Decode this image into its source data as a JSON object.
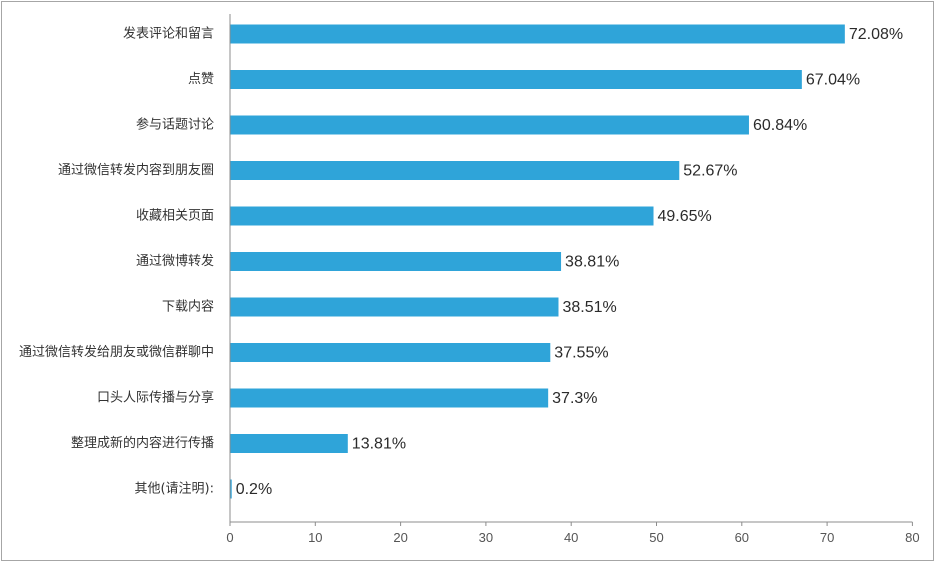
{
  "chart_data": {
    "type": "bar",
    "orientation": "horizontal",
    "categories": [
      "发表评论和留言",
      "点赞",
      "参与话题讨论",
      "通过微信转发内容到朋友圈",
      "收藏相关页面",
      "通过微博转发",
      "下载内容",
      "通过微信转发给朋友或微信群聊中",
      "口头人际传播与分享",
      "整理成新的内容进行传播",
      "其他(请注明):"
    ],
    "values": [
      72.08,
      67.04,
      60.84,
      52.67,
      49.65,
      38.81,
      38.51,
      37.55,
      37.3,
      13.81,
      0.2
    ],
    "value_labels": [
      "72.08%",
      "67.04%",
      "60.84%",
      "52.67%",
      "49.65%",
      "38.81%",
      "38.51%",
      "37.55%",
      "37.3%",
      "13.81%",
      "0.2%"
    ],
    "xlim": [
      0,
      80
    ],
    "x_ticks": [
      "0",
      "10",
      "20",
      "30",
      "40",
      "50",
      "60",
      "70",
      "80"
    ],
    "title": "",
    "xlabel": "",
    "ylabel": "",
    "grid": false,
    "legend": "none",
    "bar_color": "#2fa4d9",
    "axis_color": "#8c8c8c"
  }
}
